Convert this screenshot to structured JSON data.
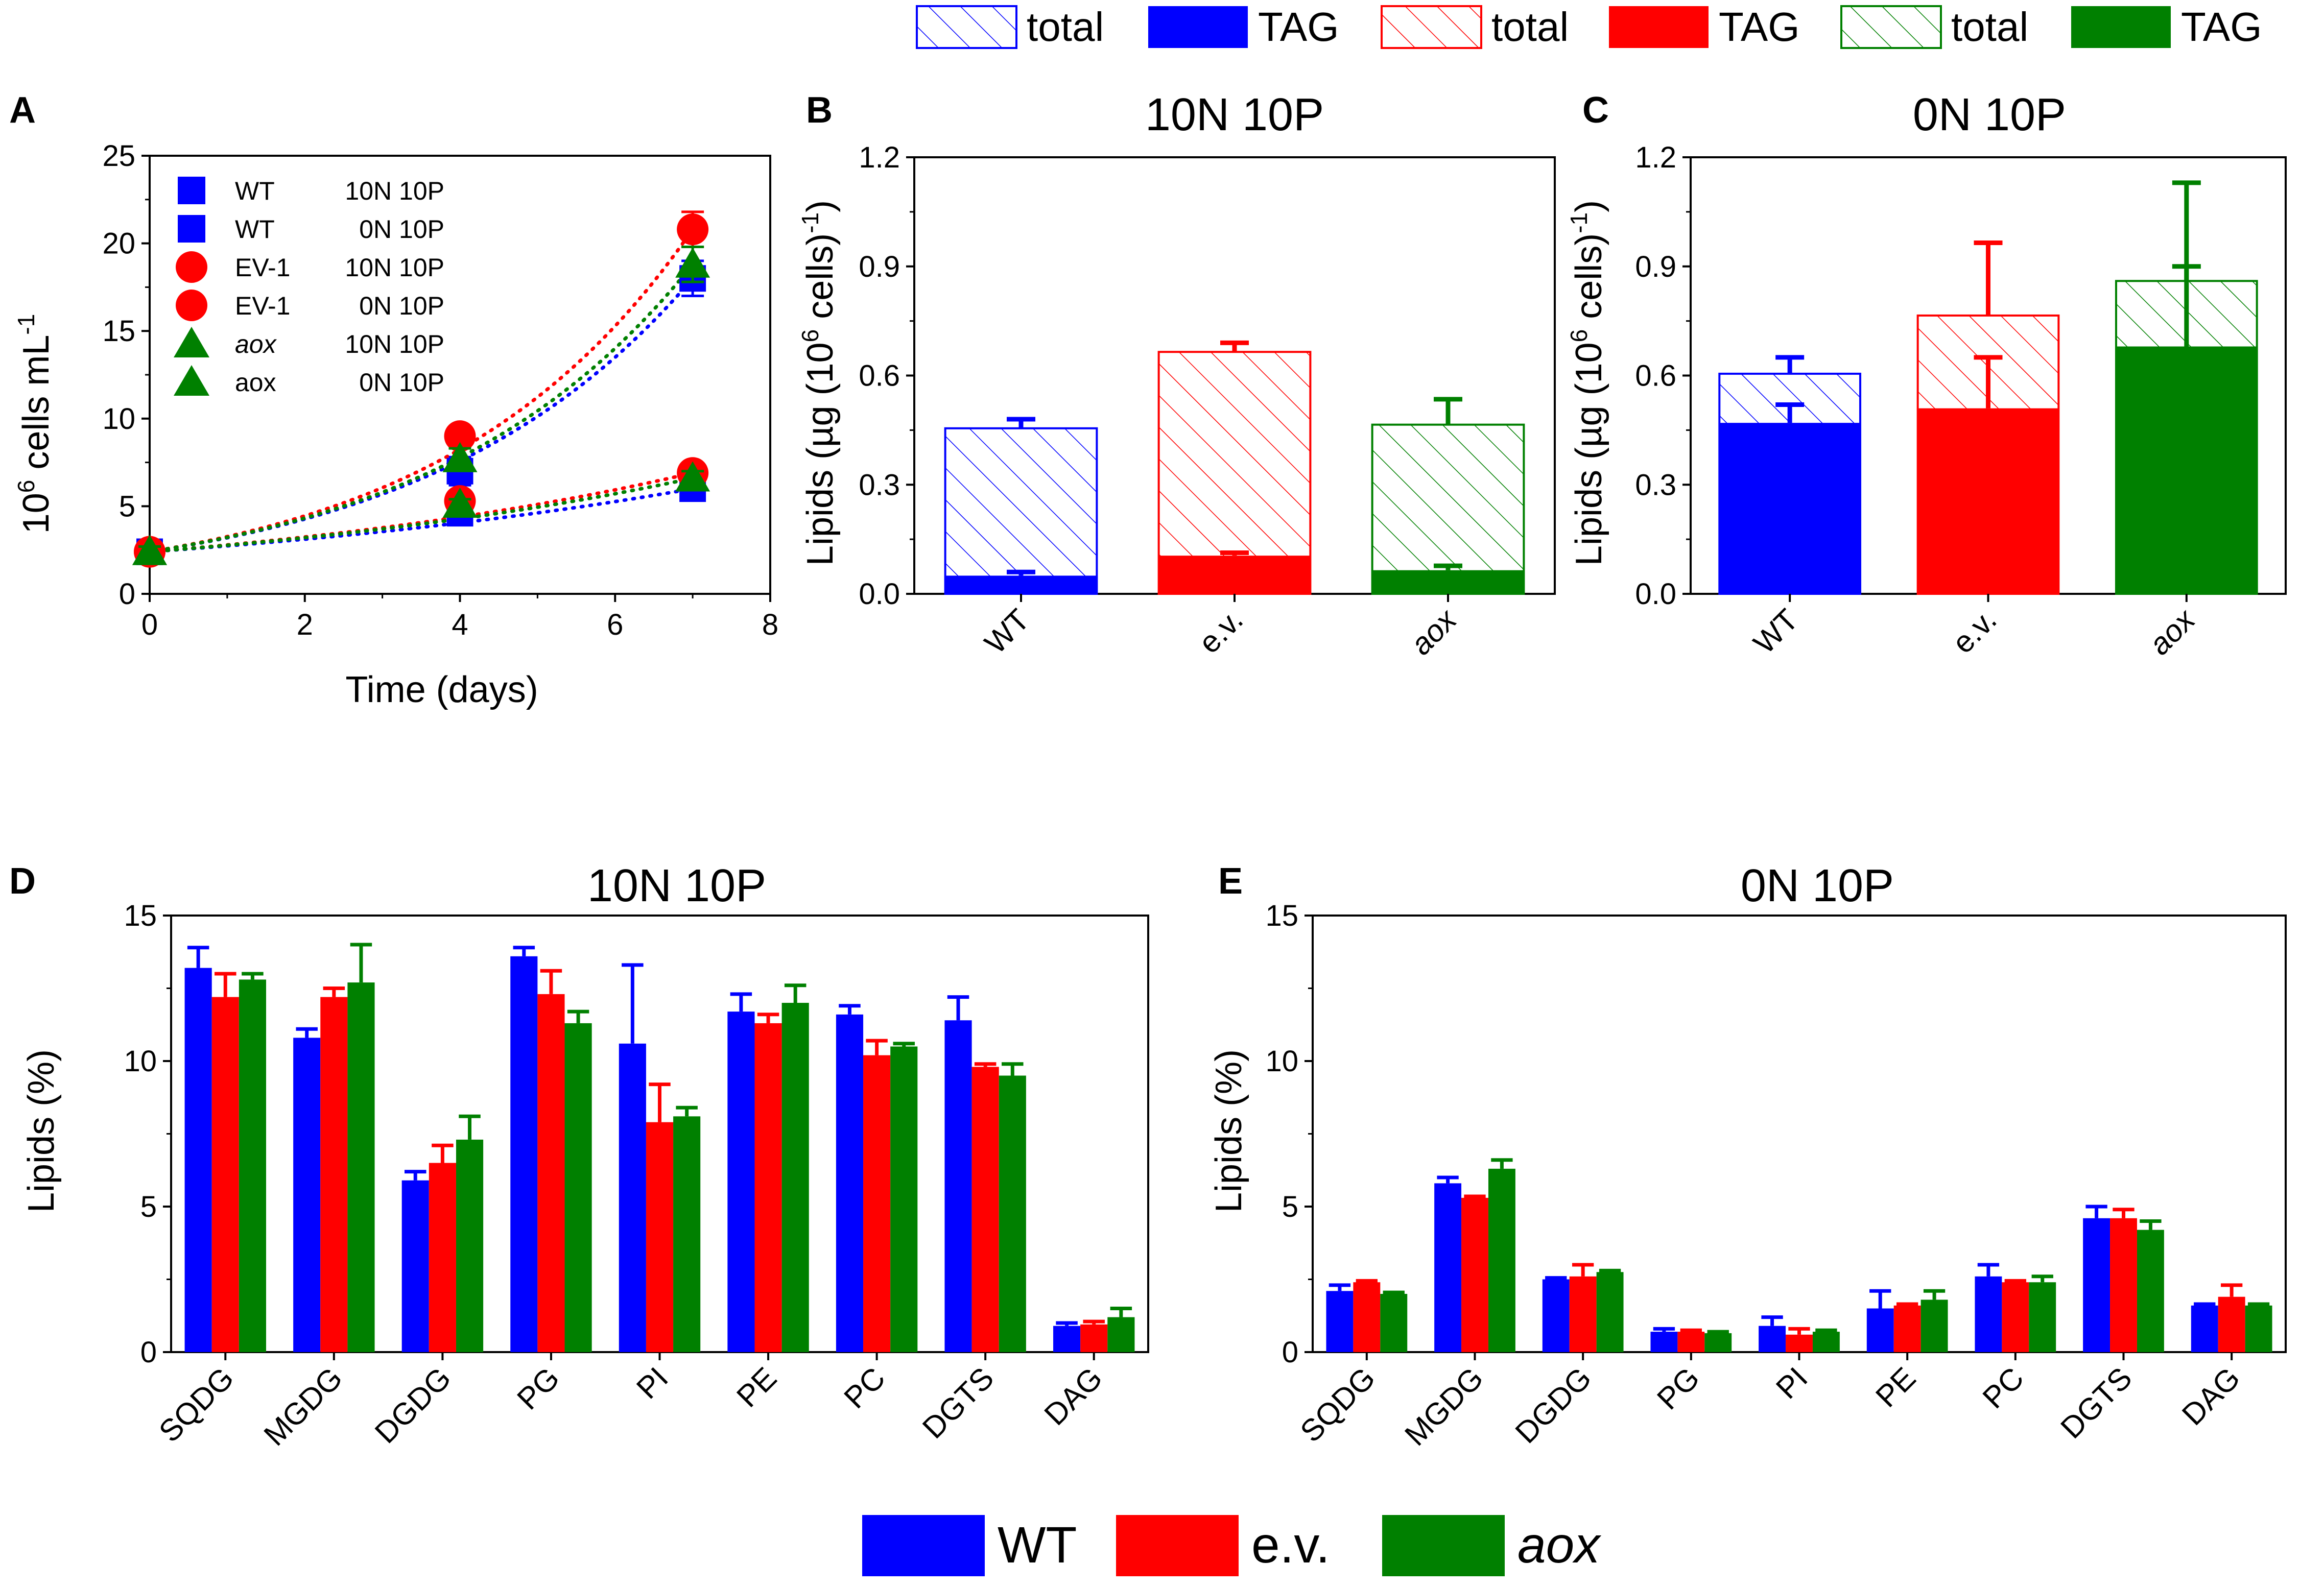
{
  "colors": {
    "wt": "#0000ff",
    "ev": "#ff0000",
    "aox": "#008000",
    "axis": "#000000"
  },
  "legend_top": {
    "items": [
      {
        "label": "total",
        "style": "hatch",
        "color": "#0000ff"
      },
      {
        "label": "TAG",
        "style": "solid",
        "color": "#0000ff"
      },
      {
        "label": "total",
        "style": "hatch",
        "color": "#ff0000"
      },
      {
        "label": "TAG",
        "style": "solid",
        "color": "#ff0000"
      },
      {
        "label": "total",
        "style": "hatch",
        "color": "#008000"
      },
      {
        "label": "TAG",
        "style": "solid",
        "color": "#008000"
      }
    ]
  },
  "legend_bottom": {
    "items": [
      {
        "label": "WT",
        "color": "#0000ff",
        "italic": false
      },
      {
        "label": "e.v.",
        "color": "#ff0000",
        "italic": false
      },
      {
        "label": "aox",
        "color": "#008000",
        "italic": true
      }
    ]
  },
  "chart_data": [
    {
      "id": "A",
      "panel_label": "A",
      "type": "scatter",
      "title": "",
      "xlabel": "Time (days)",
      "ylabel": "10^6 cells mL^-1",
      "ylabel_parts": {
        "base": "10",
        "sup1": "6",
        "mid": " cells mL",
        "sup2": "-1"
      },
      "xlim": [
        0,
        8
      ],
      "ylim": [
        0,
        25
      ],
      "xticks": [
        0,
        2,
        4,
        6,
        8
      ],
      "yticks": [
        0,
        5,
        10,
        15,
        20,
        25
      ],
      "legend": [
        {
          "name": "WT",
          "cond": "10N 10P",
          "marker": "square",
          "color": "#0000ff",
          "italic": false
        },
        {
          "name": "WT",
          "cond": "0N 10P",
          "marker": "square",
          "color": "#0000ff",
          "italic": false
        },
        {
          "name": "EV-1",
          "cond": "10N 10P",
          "marker": "circle",
          "color": "#ff0000",
          "italic": false
        },
        {
          "name": "EV-1",
          "cond": "0N 10P",
          "marker": "circle",
          "color": "#ff0000",
          "italic": false
        },
        {
          "name": "aox",
          "cond": "10N 10P",
          "marker": "triangle",
          "color": "#008000",
          "italic": true
        },
        {
          "name": "aox",
          "cond": "0N 10P",
          "marker": "triangle",
          "color": "#008000",
          "italic": false
        }
      ],
      "series": [
        {
          "name": "WT 10N 10P",
          "marker": "square",
          "color": "#0000ff",
          "x": [
            0,
            4,
            7
          ],
          "y": [
            2.4,
            7.0,
            18.0
          ],
          "err": [
            0.3,
            0.8,
            1.0
          ]
        },
        {
          "name": "WT 0N 10P",
          "marker": "square",
          "color": "#0000ff",
          "x": [
            0,
            4,
            7
          ],
          "y": [
            2.4,
            4.6,
            6.0
          ],
          "err": [
            0.3,
            0.4,
            0.5
          ]
        },
        {
          "name": "EV-1 10N 10P",
          "marker": "circle",
          "color": "#ff0000",
          "x": [
            0,
            4,
            7
          ],
          "y": [
            2.4,
            9.0,
            20.8
          ],
          "err": [
            0.3,
            0.4,
            1.0
          ]
        },
        {
          "name": "EV-1 0N 10P",
          "marker": "circle",
          "color": "#ff0000",
          "x": [
            0,
            4,
            7
          ],
          "y": [
            2.4,
            5.3,
            6.9
          ],
          "err": [
            0.3,
            0.3,
            0.4
          ]
        },
        {
          "name": "aox 10N 10P",
          "marker": "triangle",
          "color": "#008000",
          "x": [
            0,
            4,
            7
          ],
          "y": [
            2.4,
            7.7,
            18.8
          ],
          "err": [
            0.3,
            0.6,
            1.0
          ]
        },
        {
          "name": "aox 0N 10P",
          "marker": "triangle",
          "color": "#008000",
          "x": [
            0,
            4,
            7
          ],
          "y": [
            2.4,
            5.1,
            6.6
          ],
          "err": [
            0.3,
            0.3,
            0.4
          ]
        }
      ]
    },
    {
      "id": "B",
      "panel_label": "B",
      "type": "bar",
      "title": "10N 10P",
      "ylabel": "Lipids (µg (10^6 cells)^-1)",
      "ylabel_parts": {
        "pre": "Lipids (µg (10",
        "sup1": "6",
        "mid": " cells)",
        "sup2": "-1",
        "post": ")"
      },
      "ylim": [
        0,
        1.2
      ],
      "yticks": [
        0.0,
        0.3,
        0.6,
        0.9,
        1.2
      ],
      "categories": [
        "WT",
        "e.v.",
        "aox"
      ],
      "category_italic": [
        false,
        false,
        true
      ],
      "colors": [
        "#0000ff",
        "#ff0000",
        "#008000"
      ],
      "total": [
        0.455,
        0.665,
        0.465
      ],
      "total_err": [
        0.025,
        0.025,
        0.07
      ],
      "tag": [
        0.05,
        0.105,
        0.065
      ],
      "tag_err": [
        0.01,
        0.008,
        0.012
      ]
    },
    {
      "id": "C",
      "panel_label": "C",
      "type": "bar",
      "title": "0N 10P",
      "ylabel": "Lipids (µg (10^6 cells)^-1)",
      "ylabel_parts": {
        "pre": "Lipids (µg (10",
        "sup1": "6",
        "mid": " cells)",
        "sup2": "-1",
        "post": ")"
      },
      "ylim": [
        0,
        1.2
      ],
      "yticks": [
        0.0,
        0.3,
        0.6,
        0.9,
        1.2
      ],
      "categories": [
        "WT",
        "e.v.",
        "aox"
      ],
      "category_italic": [
        false,
        false,
        true
      ],
      "colors": [
        "#0000ff",
        "#ff0000",
        "#008000"
      ],
      "total": [
        0.605,
        0.765,
        0.86
      ],
      "total_err": [
        0.045,
        0.2,
        0.27
      ],
      "tag": [
        0.47,
        0.51,
        0.68
      ],
      "tag_err": [
        0.05,
        0.14,
        0.22
      ]
    },
    {
      "id": "D",
      "panel_label": "D",
      "type": "bar",
      "title": "10N 10P",
      "ylabel": "Lipids (%)",
      "ylim": [
        0,
        15
      ],
      "yticks": [
        0,
        5,
        10,
        15
      ],
      "categories": [
        "SQDG",
        "MGDG",
        "DGDG",
        "PG",
        "PI",
        "PE",
        "PC",
        "DGTS",
        "DAG"
      ],
      "series": [
        {
          "name": "WT",
          "color": "#0000ff",
          "values": [
            13.2,
            10.8,
            5.9,
            13.6,
            10.6,
            11.7,
            11.6,
            11.4,
            0.9
          ],
          "err": [
            0.7,
            0.3,
            0.3,
            0.3,
            2.7,
            0.6,
            0.3,
            0.8,
            0.1
          ]
        },
        {
          "name": "e.v.",
          "color": "#ff0000",
          "values": [
            12.2,
            12.2,
            6.5,
            12.3,
            7.9,
            11.3,
            10.2,
            9.8,
            0.95
          ],
          "err": [
            0.8,
            0.3,
            0.6,
            0.8,
            1.3,
            0.3,
            0.5,
            0.1,
            0.1
          ]
        },
        {
          "name": "aox",
          "color": "#008000",
          "values": [
            12.8,
            12.7,
            7.3,
            11.3,
            8.1,
            12.0,
            10.5,
            9.5,
            1.2
          ],
          "err": [
            0.2,
            1.3,
            0.8,
            0.4,
            0.3,
            0.6,
            0.1,
            0.4,
            0.3
          ]
        }
      ]
    },
    {
      "id": "E",
      "panel_label": "E",
      "type": "bar",
      "title": "0N 10P",
      "ylabel": "Lipids (%)",
      "ylim": [
        0,
        15
      ],
      "yticks": [
        0,
        5,
        10,
        15
      ],
      "categories": [
        "SQDG",
        "MGDG",
        "DGDG",
        "PG",
        "PI",
        "PE",
        "PC",
        "DGTS",
        "DAG"
      ],
      "series": [
        {
          "name": "WT",
          "color": "#0000ff",
          "values": [
            2.1,
            5.8,
            2.5,
            0.7,
            0.9,
            1.5,
            2.6,
            4.6,
            1.6
          ],
          "err": [
            0.2,
            0.2,
            0.05,
            0.1,
            0.3,
            0.6,
            0.4,
            0.4,
            0.05
          ]
        },
        {
          "name": "e.v.",
          "color": "#ff0000",
          "values": [
            2.4,
            5.3,
            2.6,
            0.7,
            0.6,
            1.6,
            2.4,
            4.6,
            1.9
          ],
          "err": [
            0.05,
            0.05,
            0.4,
            0.05,
            0.2,
            0.05,
            0.05,
            0.3,
            0.4
          ]
        },
        {
          "name": "aox",
          "color": "#008000",
          "values": [
            2.0,
            6.3,
            2.75,
            0.65,
            0.7,
            1.8,
            2.4,
            4.2,
            1.6
          ],
          "err": [
            0.05,
            0.3,
            0.05,
            0.05,
            0.05,
            0.3,
            0.2,
            0.3,
            0.05
          ]
        }
      ]
    }
  ]
}
